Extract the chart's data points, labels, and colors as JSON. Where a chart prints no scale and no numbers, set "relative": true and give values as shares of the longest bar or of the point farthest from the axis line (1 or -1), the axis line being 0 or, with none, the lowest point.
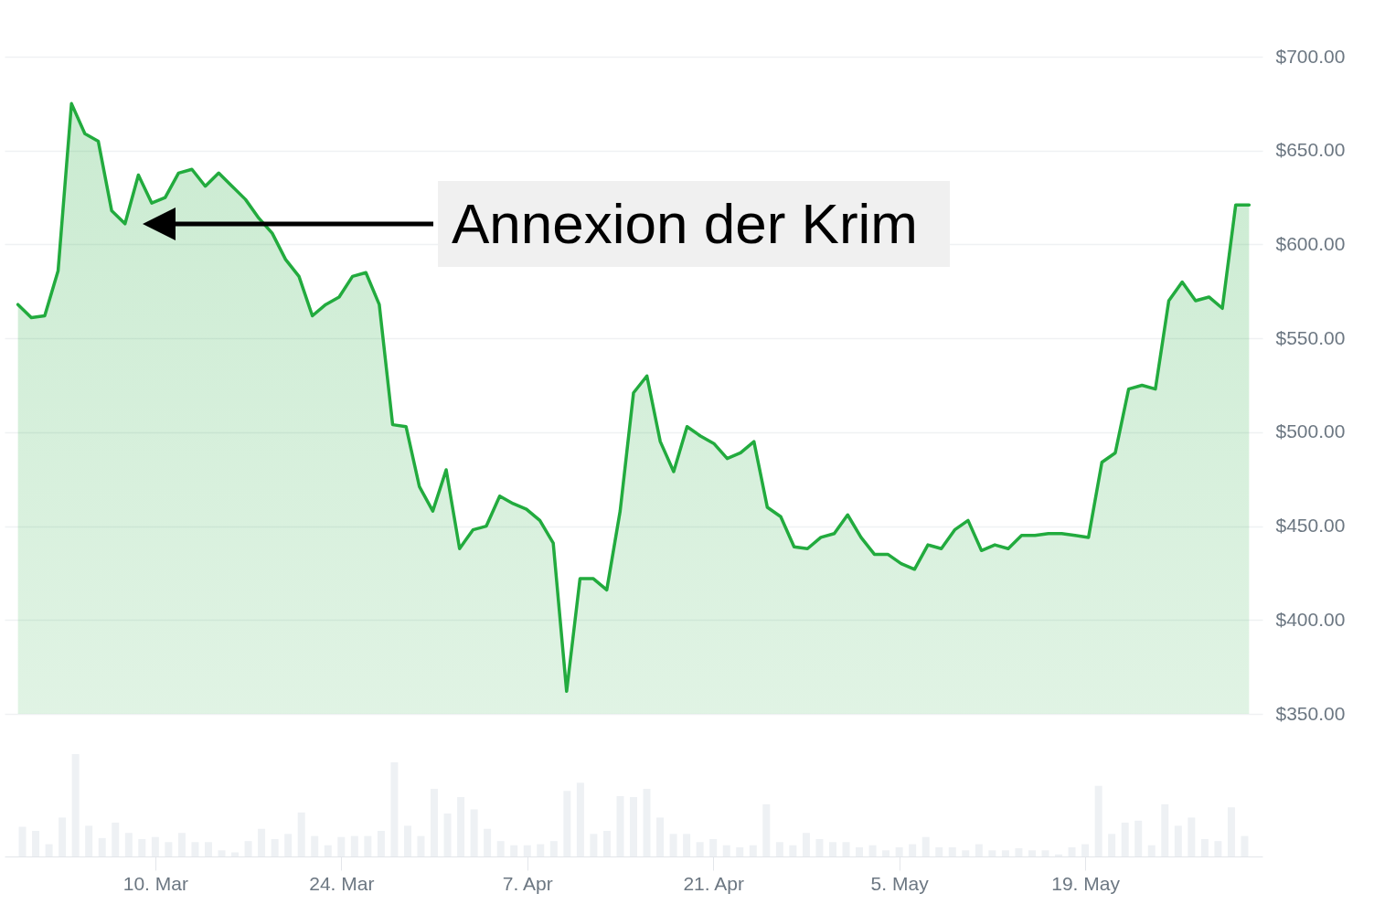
{
  "chart_data": [
    {
      "type": "area",
      "color": "#22ab3e",
      "x": [
        "--02-28",
        "--03-01",
        "--03-02",
        "--03-03",
        "--03-04",
        "--03-05",
        "--03-06",
        "--03-07",
        "--03-08",
        "--03-09",
        "--03-10",
        "--03-11",
        "--03-12",
        "--03-13",
        "--03-14",
        "--03-15",
        "--03-16",
        "--03-17",
        "--03-18",
        "--03-19",
        "--03-20",
        "--03-21",
        "--03-22",
        "--03-23",
        "--03-24",
        "--03-25",
        "--03-26",
        "--03-27",
        "--03-28",
        "--03-29",
        "--03-30",
        "--03-31",
        "--04-01",
        "--04-02",
        "--04-03",
        "--04-04",
        "--04-05",
        "--04-06",
        "--04-07",
        "--04-08",
        "--04-09",
        "--04-10",
        "--04-11",
        "--04-12",
        "--04-13",
        "--04-14",
        "--04-15",
        "--04-16",
        "--04-17",
        "--04-18",
        "--04-19",
        "--04-20",
        "--04-21",
        "--04-22",
        "--04-23",
        "--04-24",
        "--04-25",
        "--04-26",
        "--04-27",
        "--04-28",
        "--04-29",
        "--04-30",
        "--05-01",
        "--05-02",
        "--05-03",
        "--05-04",
        "--05-05",
        "--05-06",
        "--05-07",
        "--05-08",
        "--05-09",
        "--05-10",
        "--05-11",
        "--05-12",
        "--05-13",
        "--05-14",
        "--05-15",
        "--05-16",
        "--05-17",
        "--05-18",
        "--05-19",
        "--05-20",
        "--05-21",
        "--05-22",
        "--05-23",
        "--05-24",
        "--05-25",
        "--05-26",
        "--05-27",
        "--05-28",
        "--05-29",
        "--05-30",
        "--05-31"
      ],
      "values": [
        568,
        561,
        562,
        586,
        675,
        659,
        655,
        618,
        611,
        637,
        622,
        625,
        638,
        640,
        631,
        638,
        631,
        624,
        614,
        606,
        592,
        583,
        562,
        568,
        572,
        583,
        585,
        568,
        504,
        503,
        471,
        458,
        480,
        438,
        448,
        450,
        466,
        462,
        459,
        453,
        441,
        362,
        422,
        422,
        416,
        458,
        521,
        530,
        495,
        479,
        503,
        498,
        494,
        486,
        489,
        495,
        460,
        455,
        439,
        438,
        444,
        446,
        456,
        444,
        435,
        435,
        430,
        427,
        440,
        438,
        448,
        453,
        437,
        440,
        438,
        445,
        445,
        446,
        446,
        445,
        444,
        484,
        489,
        523,
        525,
        523,
        570,
        580,
        570,
        572,
        566,
        621,
        621
      ],
      "xlim": [
        "--02-27",
        "--06-01"
      ],
      "ylim": [
        350,
        700
      ],
      "yticks": [
        {
          "value": 350,
          "label": "$350.00"
        },
        {
          "value": 400,
          "label": "$400.00"
        },
        {
          "value": 450,
          "label": "$450.00"
        },
        {
          "value": 500,
          "label": "$500.00"
        },
        {
          "value": 550,
          "label": "$550.00"
        },
        {
          "value": 600,
          "label": "$600.00"
        },
        {
          "value": 650,
          "label": "$650.00"
        },
        {
          "value": 700,
          "label": "$700.00"
        }
      ],
      "grid": "y",
      "tick_labels": "y",
      "annotations": [
        "Annexion der Krim"
      ]
    },
    {
      "type": "bar",
      "color": "#eef1f4",
      "relative": true,
      "x": [
        "--02-28",
        "--03-01",
        "--03-02",
        "--03-03",
        "--03-04",
        "--03-05",
        "--03-06",
        "--03-07",
        "--03-08",
        "--03-09",
        "--03-10",
        "--03-11",
        "--03-12",
        "--03-13",
        "--03-14",
        "--03-15",
        "--03-16",
        "--03-17",
        "--03-18",
        "--03-19",
        "--03-20",
        "--03-21",
        "--03-22",
        "--03-23",
        "--03-24",
        "--03-25",
        "--03-26",
        "--03-27",
        "--03-28",
        "--03-29",
        "--03-30",
        "--03-31",
        "--04-01",
        "--04-02",
        "--04-03",
        "--04-04",
        "--04-05",
        "--04-06",
        "--04-07",
        "--04-08",
        "--04-09",
        "--04-10",
        "--04-11",
        "--04-12",
        "--04-13",
        "--04-14",
        "--04-15",
        "--04-16",
        "--04-17",
        "--04-18",
        "--04-19",
        "--04-20",
        "--04-21",
        "--04-22",
        "--04-23",
        "--04-24",
        "--04-25",
        "--04-26",
        "--04-27",
        "--04-28",
        "--04-29",
        "--04-30",
        "--05-01",
        "--05-02",
        "--05-03",
        "--05-04",
        "--05-05",
        "--05-06",
        "--05-07",
        "--05-08",
        "--05-09",
        "--05-10",
        "--05-11",
        "--05-12",
        "--05-13",
        "--05-14",
        "--05-15",
        "--05-16",
        "--05-17",
        "--05-18",
        "--05-19",
        "--05-20",
        "--05-21",
        "--05-22",
        "--05-23",
        "--05-24",
        "--05-25",
        "--05-26",
        "--05-27",
        "--05-28",
        "--05-29",
        "--05-30",
        "--05-31"
      ],
      "values": [
        0.29,
        0.25,
        0.12,
        0.38,
        1,
        0.3,
        0.18,
        0.33,
        0.23,
        0.17,
        0.19,
        0.14,
        0.23,
        0.14,
        0.14,
        0.06,
        0.04,
        0.15,
        0.27,
        0.17,
        0.22,
        0.43,
        0.2,
        0.11,
        0.19,
        0.2,
        0.2,
        0.25,
        0.92,
        0.3,
        0.2,
        0.66,
        0.42,
        0.58,
        0.46,
        0.27,
        0.15,
        0.11,
        0.11,
        0.12,
        0.15,
        0.64,
        0.72,
        0.22,
        0.25,
        0.59,
        0.58,
        0.66,
        0.38,
        0.22,
        0.22,
        0.14,
        0.17,
        0.11,
        0.09,
        0.11,
        0.51,
        0.14,
        0.11,
        0.23,
        0.17,
        0.14,
        0.14,
        0.09,
        0.11,
        0.06,
        0.09,
        0.12,
        0.19,
        0.09,
        0.09,
        0.06,
        0.12,
        0.06,
        0.06,
        0.08,
        0.06,
        0.06,
        0.02,
        0.09,
        0.12,
        0.69,
        0.22,
        0.33,
        0.35,
        0.11,
        0.51,
        0.3,
        0.38,
        0.17,
        0.15,
        0.48,
        0.2
      ],
      "xlim": [
        "--02-27",
        "--06-01"
      ],
      "xticks": [
        {
          "value": "--03-10",
          "label": "10. Mar"
        },
        {
          "value": "--03-24",
          "label": "24. Mar"
        },
        {
          "value": "--04-07",
          "label": "7. Apr"
        },
        {
          "value": "--04-21",
          "label": "21. Apr"
        },
        {
          "value": "--05-05",
          "label": "5. May"
        },
        {
          "value": "--05-19",
          "label": "19. May"
        }
      ]
    }
  ]
}
